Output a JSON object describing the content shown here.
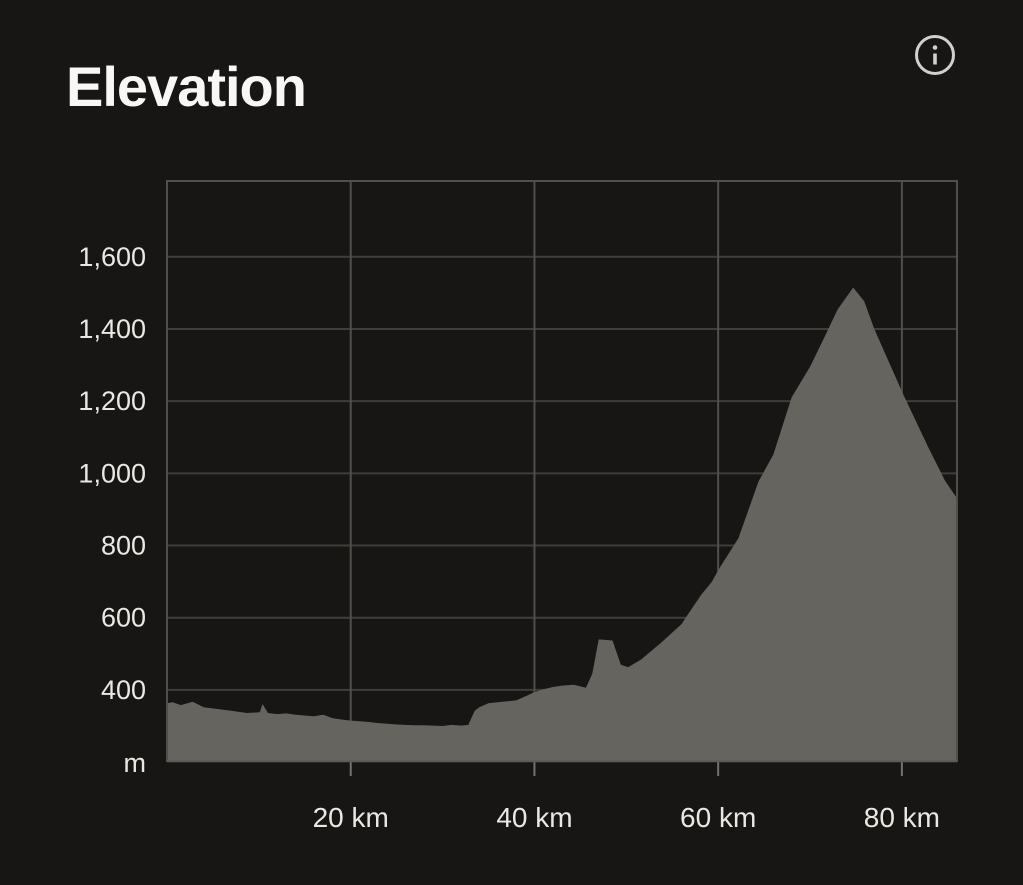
{
  "header": {
    "title": "Elevation",
    "info_icon": "info-icon"
  },
  "colors": {
    "background": "#171614",
    "area_fill": "#66645e",
    "grid_horizontal": "#403e3a",
    "grid_vertical": "#514f4a",
    "plot_border": "#514f4a",
    "axis_bottom": "#5e5c56",
    "tick_mark": "#74726c",
    "label_text": "#eae8e3",
    "title_text": "#f8f7f5",
    "icon": "#d3d0cb"
  },
  "chart_data": {
    "type": "area",
    "title": "Elevation",
    "xlabel": "km",
    "ylabel": "m",
    "unit_label": "m",
    "grid": true,
    "legend": "none",
    "xlim": [
      0,
      86
    ],
    "ylim": [
      203,
      1810
    ],
    "x_ticks": [
      {
        "value": 20,
        "label": "20 km"
      },
      {
        "value": 40,
        "label": "40 km"
      },
      {
        "value": 60,
        "label": "60 km"
      },
      {
        "value": 80,
        "label": "80 km"
      }
    ],
    "y_ticks": [
      {
        "value": 400,
        "label": "400"
      },
      {
        "value": 600,
        "label": "600"
      },
      {
        "value": 800,
        "label": "800"
      },
      {
        "value": 1000,
        "label": "1,000"
      },
      {
        "value": 1200,
        "label": "1,200"
      },
      {
        "value": 1400,
        "label": "1,400"
      },
      {
        "value": 1600,
        "label": "1,600"
      }
    ],
    "series": [
      {
        "name": "elevation-profile",
        "units": {
          "x": "km",
          "y": "m"
        },
        "points": [
          [
            0,
            363
          ],
          [
            0.6,
            366
          ],
          [
            1.5,
            358
          ],
          [
            2.8,
            367
          ],
          [
            4,
            352
          ],
          [
            5.5,
            347
          ],
          [
            7,
            342
          ],
          [
            8.7,
            336
          ],
          [
            10.1,
            338
          ],
          [
            10.4,
            361
          ],
          [
            11,
            336
          ],
          [
            12,
            333
          ],
          [
            13,
            335
          ],
          [
            14,
            331
          ],
          [
            15,
            329
          ],
          [
            16,
            327
          ],
          [
            17,
            331
          ],
          [
            18,
            322
          ],
          [
            19,
            318
          ],
          [
            20,
            315
          ],
          [
            21,
            313
          ],
          [
            22,
            311
          ],
          [
            23,
            308
          ],
          [
            24,
            306
          ],
          [
            25,
            304
          ],
          [
            26,
            303
          ],
          [
            27,
            302
          ],
          [
            28,
            302
          ],
          [
            29,
            301
          ],
          [
            30,
            300
          ],
          [
            31,
            303
          ],
          [
            32,
            301
          ],
          [
            32.8,
            303
          ],
          [
            33.5,
            342
          ],
          [
            34,
            352
          ],
          [
            35,
            363
          ],
          [
            36.5,
            367
          ],
          [
            38,
            371
          ],
          [
            39,
            382
          ],
          [
            40,
            394
          ],
          [
            41,
            402
          ],
          [
            42,
            408
          ],
          [
            43,
            412
          ],
          [
            44.3,
            414
          ],
          [
            45.6,
            406
          ],
          [
            46.3,
            445
          ],
          [
            47,
            540
          ],
          [
            48.5,
            537
          ],
          [
            49.4,
            470
          ],
          [
            50.2,
            463
          ],
          [
            51.6,
            484
          ],
          [
            53.8,
            531
          ],
          [
            56,
            582
          ],
          [
            56.6,
            605
          ],
          [
            58.2,
            665
          ],
          [
            59.3,
            699
          ],
          [
            60.2,
            740
          ],
          [
            62.2,
            820
          ],
          [
            64.4,
            978
          ],
          [
            66,
            1052
          ],
          [
            68,
            1211
          ],
          [
            70,
            1295
          ],
          [
            71.6,
            1379
          ],
          [
            73,
            1454
          ],
          [
            74.7,
            1515
          ],
          [
            75.9,
            1477
          ],
          [
            77,
            1400
          ],
          [
            80.2,
            1216
          ],
          [
            82.9,
            1071
          ],
          [
            84.7,
            979
          ],
          [
            86,
            931
          ]
        ]
      }
    ]
  }
}
